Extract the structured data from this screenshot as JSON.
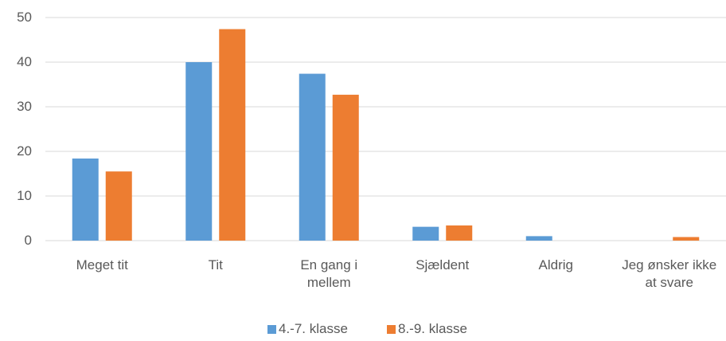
{
  "chart_data": {
    "type": "bar",
    "categories": [
      "Meget tit",
      "Tit",
      "En gang i mellem",
      "Sjældent",
      "Aldrig",
      "Jeg ønsker ikke at svare"
    ],
    "series": [
      {
        "name": "4.-7. klasse",
        "color": "#5b9bd5",
        "values": [
          18.4,
          40,
          37.4,
          3.1,
          1.0,
          0
        ]
      },
      {
        "name": "8.-9. klasse",
        "color": "#ed7d31",
        "values": [
          15.5,
          47.4,
          32.7,
          3.4,
          0,
          0.8
        ]
      }
    ],
    "ylim": [
      0,
      50
    ],
    "yticks": [
      0,
      10,
      20,
      30,
      40,
      50
    ],
    "grid": true,
    "legend": "bottom"
  }
}
